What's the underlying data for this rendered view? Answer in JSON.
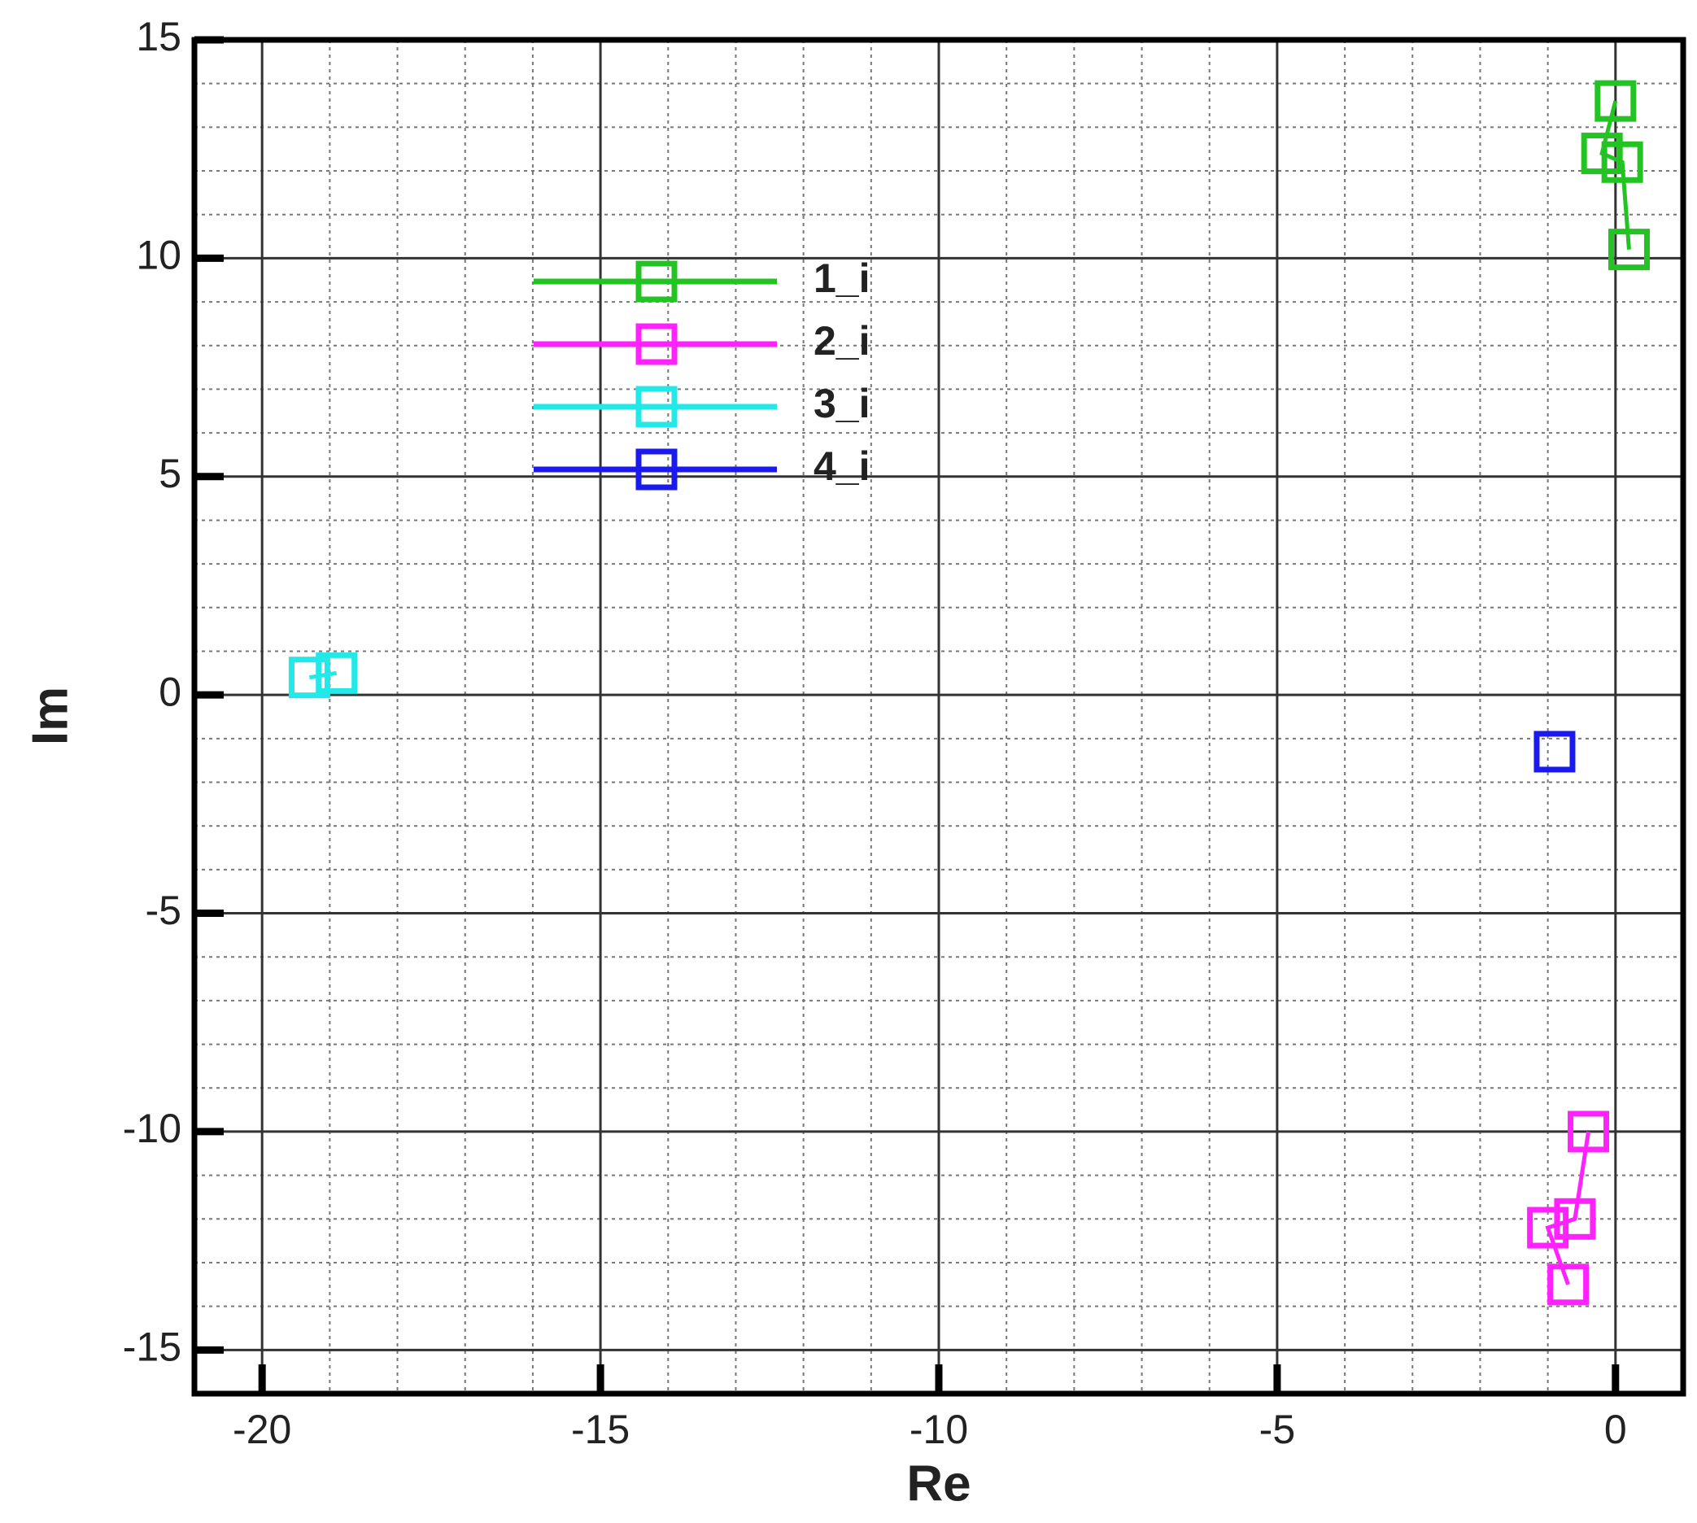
{
  "chart_data": {
    "type": "scatter",
    "x_label": "Re",
    "y_label": "Im",
    "xlim": [
      -21,
      1
    ],
    "ylim": [
      -16,
      15
    ],
    "xticks": [
      -20,
      -15,
      -10,
      -5,
      0
    ],
    "yticks": [
      -15,
      -10,
      -5,
      0,
      5,
      10,
      15
    ],
    "grid": true,
    "minor_grid_step": 1,
    "series": [
      {
        "name": "1_i",
        "color": "#22c322",
        "x": [
          0,
          -0.2,
          0.1,
          0.2
        ],
        "values": [
          13.6,
          12.4,
          12.2,
          10.2
        ]
      },
      {
        "name": "2_i",
        "color": "#ff22ff",
        "x": [
          -0.4,
          -0.6,
          -1.0,
          -0.7
        ],
        "values": [
          -10,
          -12,
          -12.2,
          -13.5
        ]
      },
      {
        "name": "3_i",
        "color": "#22e8e8",
        "x": [
          -19.3,
          -18.9
        ],
        "values": [
          0.4,
          0.5
        ]
      },
      {
        "name": "4_i",
        "color": "#1a1aee",
        "x": [
          -0.9
        ],
        "values": [
          -1.3
        ]
      }
    ]
  }
}
